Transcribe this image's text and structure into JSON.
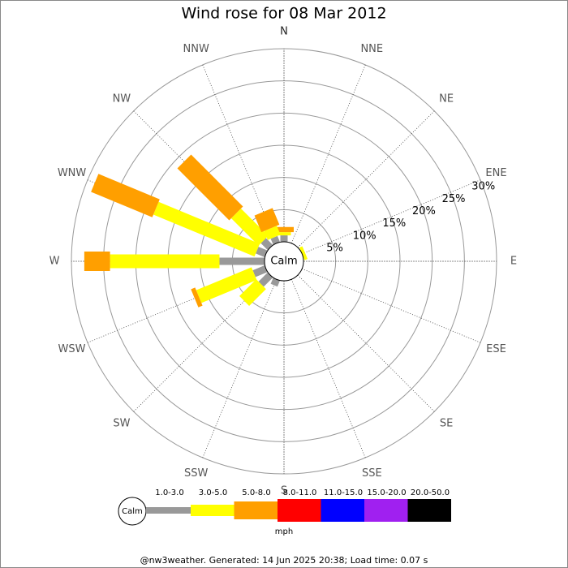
{
  "chart_data": {
    "type": "windrose",
    "title": "Wind rose for 08 Mar 2012",
    "categories": [
      "N",
      "NNE",
      "NE",
      "ENE",
      "E",
      "ESE",
      "SE",
      "SSE",
      "S",
      "SSW",
      "SW",
      "WSW",
      "W",
      "WNW",
      "NW",
      "NNW"
    ],
    "center_label": "Calm",
    "rlim": [
      0,
      30
    ],
    "rticks": [
      {
        "value": 5,
        "label": "5%"
      },
      {
        "value": 10,
        "label": "10%"
      },
      {
        "value": 15,
        "label": "15%"
      },
      {
        "value": 20,
        "label": "20%"
      },
      {
        "value": 25,
        "label": "25%"
      },
      {
        "value": 30,
        "label": "30%"
      }
    ],
    "series": [
      {
        "name": "1.0-3.0",
        "color": "#999999",
        "values": [
          1,
          0,
          0,
          0,
          0,
          0,
          0,
          0,
          0,
          1,
          2,
          2,
          7,
          1.5,
          1.5,
          1
        ]
      },
      {
        "name": "3.0-5.0",
        "color": "#ffff00",
        "values": [
          0.5,
          0,
          0,
          0.5,
          0,
          0,
          0,
          0,
          0,
          0,
          3.7,
          9.3,
          17,
          17,
          6,
          1.5
        ]
      },
      {
        "name": "5.0-8.0",
        "color": "#ff9f00",
        "values": [
          0.8,
          0,
          0,
          0,
          0,
          0,
          0,
          0,
          0,
          0,
          0,
          0.7,
          4,
          10.3,
          11.4,
          2.8
        ]
      },
      {
        "name": "8.0-11.0",
        "color": "#ff0000",
        "values": [
          0,
          0,
          0,
          0,
          0,
          0,
          0,
          0,
          0,
          0,
          0,
          0,
          0,
          0,
          0,
          0
        ]
      },
      {
        "name": "11.0-15.0",
        "color": "#0000ff",
        "values": [
          0,
          0,
          0,
          0,
          0,
          0,
          0,
          0,
          0,
          0,
          0,
          0,
          0,
          0,
          0,
          0
        ]
      },
      {
        "name": "15.0-20.0",
        "color": "#a020f0",
        "values": [
          0,
          0,
          0,
          0,
          0,
          0,
          0,
          0,
          0,
          0,
          0,
          0,
          0,
          0,
          0,
          0
        ]
      },
      {
        "name": "20.0-50.0",
        "color": "#000000",
        "values": [
          0,
          0,
          0,
          0,
          0,
          0,
          0,
          0,
          0,
          0,
          0,
          0,
          0,
          0,
          0,
          0
        ]
      }
    ],
    "legend_unit": "mph",
    "footer": "@nw3weather. Generated: 14 Jun 2025 20:38; Load time: 0.07 s"
  }
}
